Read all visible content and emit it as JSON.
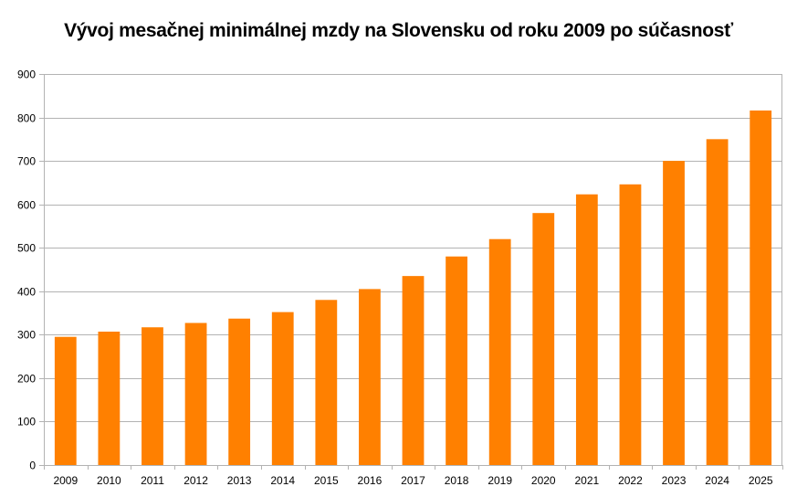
{
  "chart_data": {
    "type": "bar",
    "title": "Vývoj mesačnej minimálnej mzdy na Slovensku od roku 2009 po súčasnosť",
    "categories": [
      "2009",
      "2010",
      "2011",
      "2012",
      "2013",
      "2014",
      "2015",
      "2016",
      "2017",
      "2018",
      "2019",
      "2020",
      "2021",
      "2022",
      "2023",
      "2024",
      "2025"
    ],
    "series": [
      {
        "values": [
          295,
          307,
          317,
          327,
          337,
          352,
          380,
          405,
          435,
          480,
          520,
          580,
          623,
          646,
          700,
          750,
          816
        ]
      }
    ],
    "ylim": [
      0,
      900
    ],
    "yticks": [
      0,
      100,
      200,
      300,
      400,
      500,
      600,
      700,
      800,
      900
    ],
    "xlabel": "",
    "ylabel": "",
    "grid": true,
    "legend": "none",
    "colors": {
      "bar": "#ff8000",
      "grid": "#b3b3b3",
      "axis": "#b3b3b3"
    }
  }
}
